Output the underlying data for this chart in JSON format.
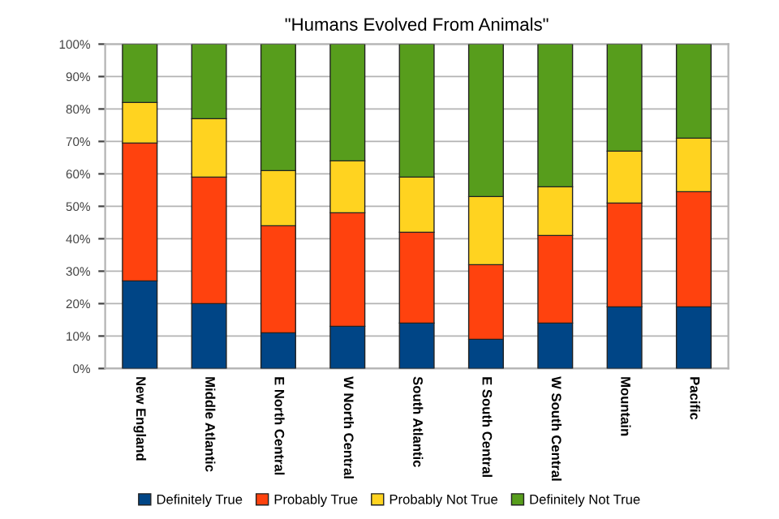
{
  "chart_data": {
    "type": "bar",
    "title": "\"Humans Evolved From Animals\"",
    "stacked": true,
    "categories": [
      "New England",
      "Middle Atlantic",
      "E North Central",
      "W North Central",
      "South Atlantic",
      "E South Central",
      "W South Central",
      "Mountain",
      "Pacific"
    ],
    "series": [
      {
        "name": "Definitely True",
        "color": "#004586",
        "values": [
          27,
          20,
          11,
          13,
          14,
          9,
          14,
          19,
          19
        ]
      },
      {
        "name": "Probably True",
        "color": "#ff420e",
        "values": [
          42.5,
          39,
          33,
          35,
          28,
          23,
          27,
          32,
          35.5
        ]
      },
      {
        "name": "Probably Not True",
        "color": "#ffd320",
        "values": [
          12.5,
          18,
          17,
          16,
          17,
          21,
          15,
          16,
          16.5
        ]
      },
      {
        "name": "Definitely Not True",
        "color": "#579d1c",
        "values": [
          18,
          23,
          39,
          36,
          41,
          47,
          44,
          33,
          29
        ]
      }
    ],
    "ylim": [
      0,
      100
    ],
    "yticks": [
      {
        "value": 0,
        "label": "0%"
      },
      {
        "value": 10,
        "label": "10%"
      },
      {
        "value": 20,
        "label": "20%"
      },
      {
        "value": 30,
        "label": "30%"
      },
      {
        "value": 40,
        "label": "40%"
      },
      {
        "value": 50,
        "label": "50%"
      },
      {
        "value": 60,
        "label": "60%"
      },
      {
        "value": 70,
        "label": "70%"
      },
      {
        "value": 80,
        "label": "80%"
      },
      {
        "value": 90,
        "label": "90%"
      },
      {
        "value": 100,
        "label": "100%"
      }
    ],
    "grid": "y",
    "legend": "bottom"
  }
}
